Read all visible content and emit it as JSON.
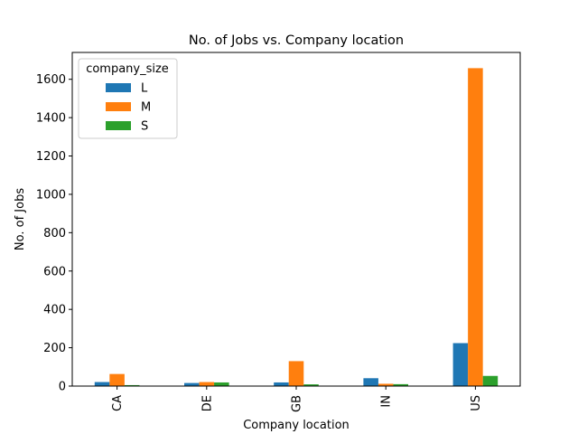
{
  "chart_data": {
    "type": "bar",
    "title": "No. of Jobs vs. Company location",
    "xlabel": "Company location",
    "ylabel": "No. of Jobs",
    "categories": [
      "CA",
      "DE",
      "GB",
      "IN",
      "US"
    ],
    "series": [
      {
        "name": "L",
        "values": [
          21,
          16,
          19,
          41,
          224
        ]
      },
      {
        "name": "M",
        "values": [
          63,
          21,
          130,
          12,
          1658
        ]
      },
      {
        "name": "S",
        "values": [
          5,
          19,
          9,
          10,
          53
        ]
      }
    ],
    "ylim": [
      0,
      1740
    ],
    "yticks": [
      0,
      200,
      400,
      600,
      800,
      1000,
      1200,
      1400,
      1600
    ],
    "legend": {
      "title": "company_size",
      "placement": "top-left"
    },
    "grid": false,
    "colors": {
      "L": "#1f77b4",
      "M": "#ff7f0e",
      "S": "#2ca02c"
    }
  }
}
